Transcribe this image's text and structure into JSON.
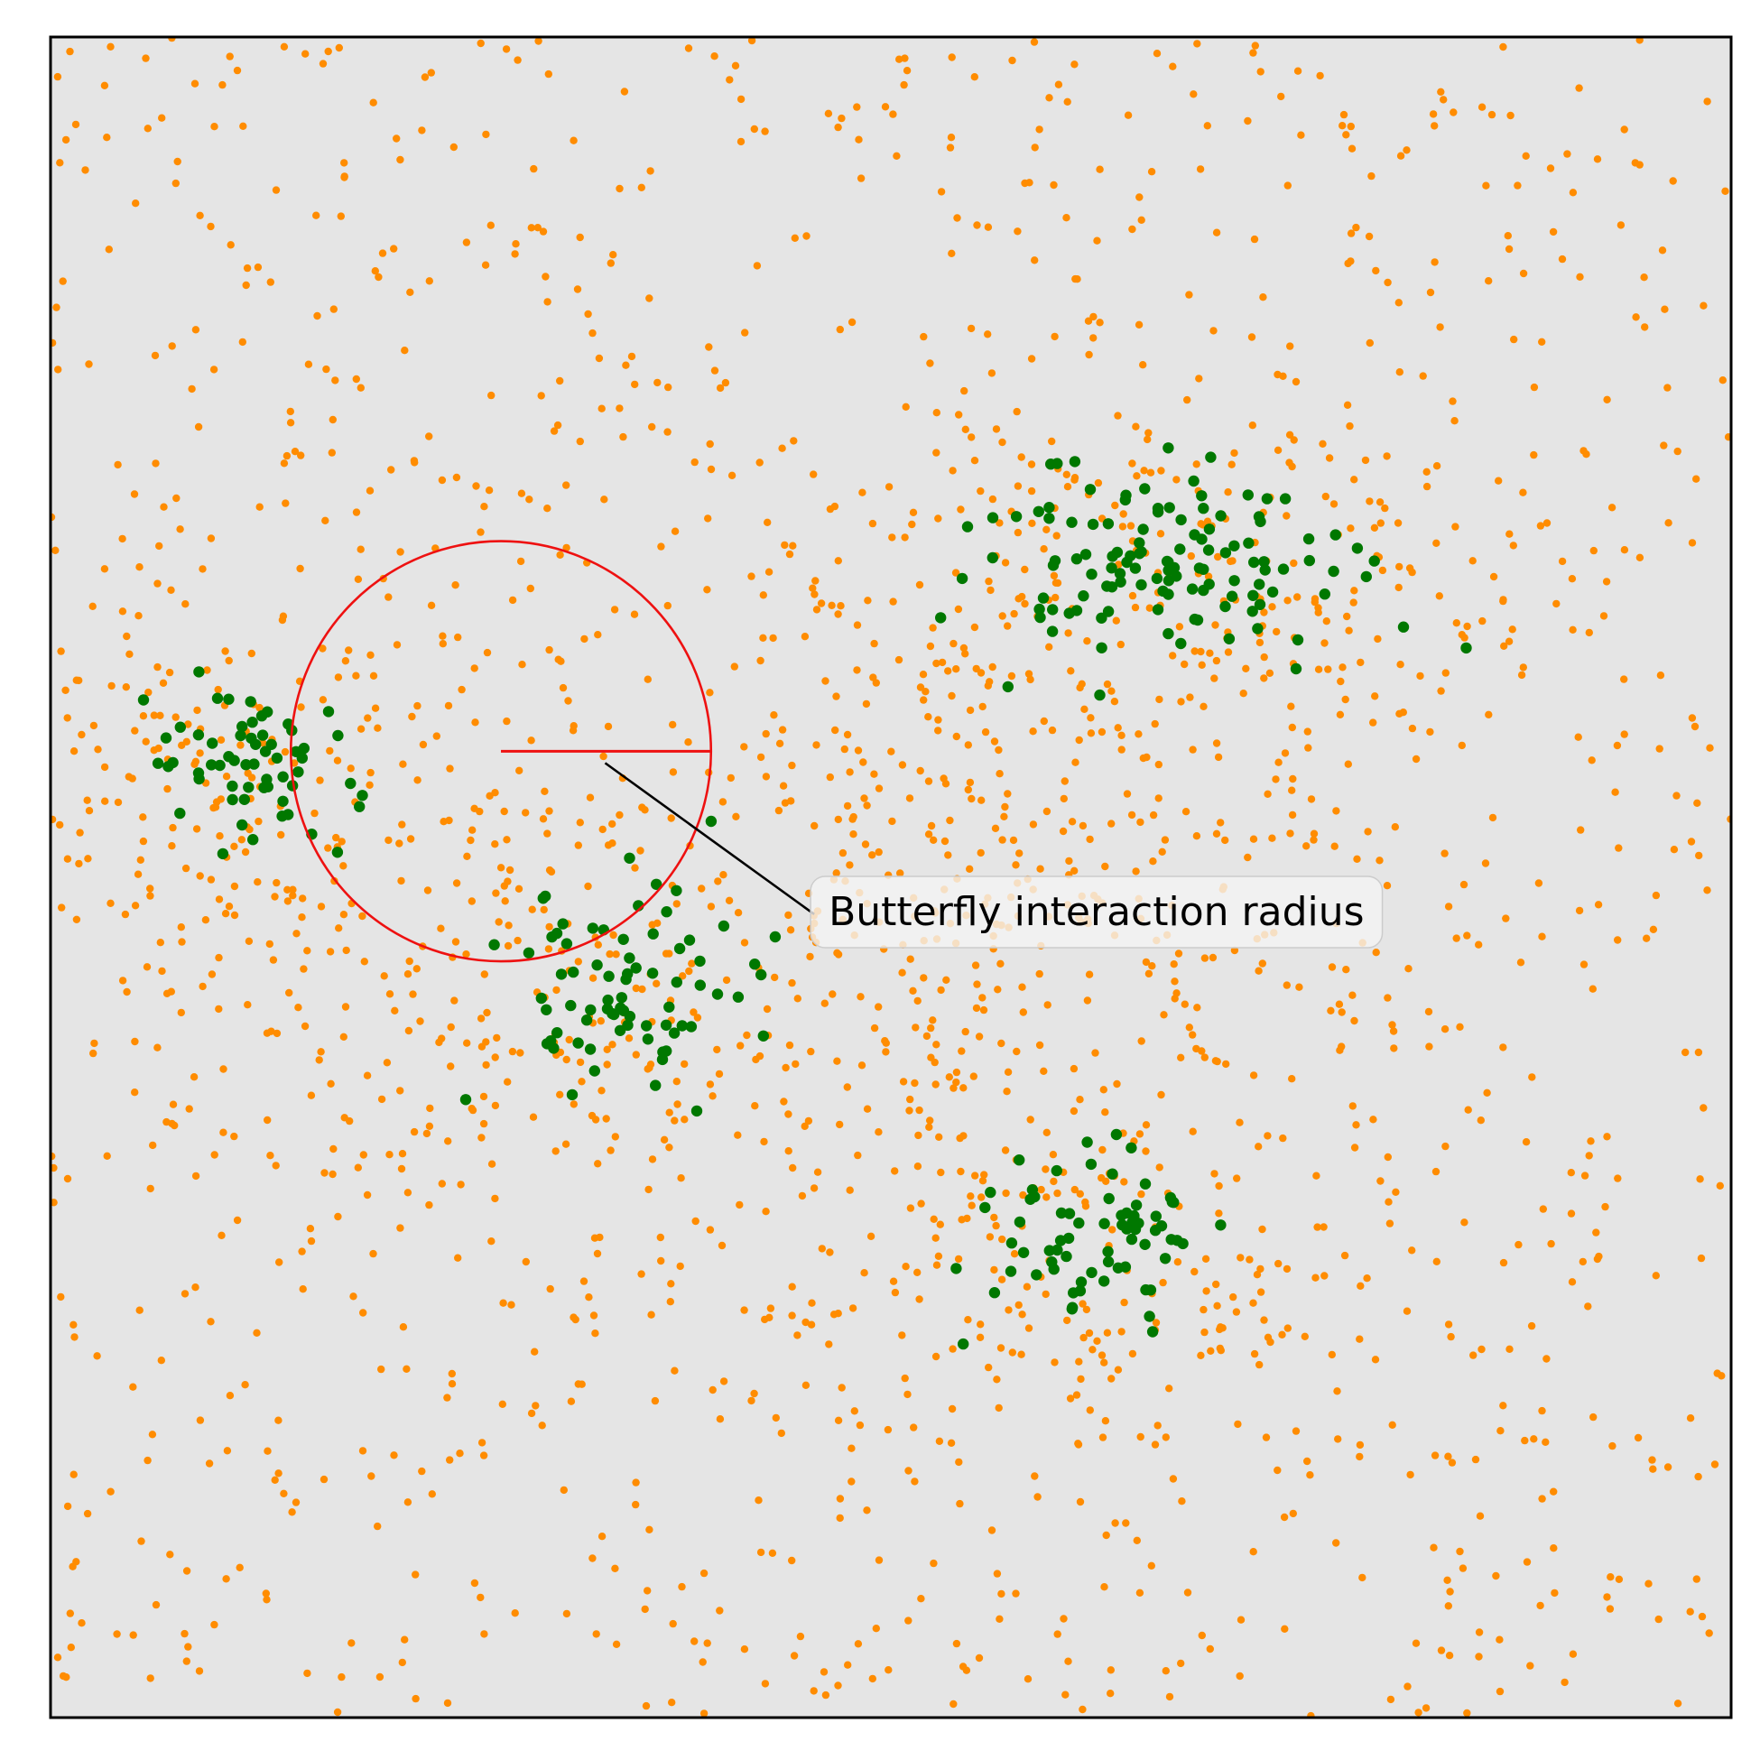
{
  "chart_data": {
    "type": "scatter",
    "title": "",
    "xlabel": "",
    "ylabel": "",
    "xlim": [
      0,
      1
    ],
    "ylim": [
      0,
      1
    ],
    "grid": false,
    "ticks_shown": false,
    "background_color": "#e5e5e5",
    "series": [
      {
        "role": "background-particles",
        "color": "#ff8c00",
        "generation": {
          "seed": 7,
          "uniform_count": 1300,
          "clusters": [
            {
              "cx": 0.1,
              "cy": 0.55,
              "sx": 0.09,
              "sy": 0.07,
              "n": 160
            },
            {
              "cx": 0.33,
              "cy": 0.42,
              "sx": 0.09,
              "sy": 0.08,
              "n": 160
            },
            {
              "cx": 0.67,
              "cy": 0.66,
              "sx": 0.12,
              "sy": 0.07,
              "n": 220
            },
            {
              "cx": 0.62,
              "cy": 0.28,
              "sx": 0.1,
              "sy": 0.07,
              "n": 170
            },
            {
              "cx": 0.55,
              "cy": 0.5,
              "sx": 0.1,
              "sy": 0.06,
              "n": 160
            }
          ]
        }
      },
      {
        "role": "butterfly-clusters",
        "color": "#007800",
        "generation": {
          "seed": 23,
          "clusters": [
            {
              "cx": 0.115,
              "cy": 0.565,
              "sx": 0.032,
              "sy": 0.028,
              "n": 60
            },
            {
              "cx": 0.345,
              "cy": 0.435,
              "sx": 0.038,
              "sy": 0.03,
              "n": 75
            },
            {
              "cx": 0.655,
              "cy": 0.685,
              "sx": 0.055,
              "sy": 0.03,
              "n": 120
            },
            {
              "cx": 0.625,
              "cy": 0.28,
              "sx": 0.03,
              "sy": 0.03,
              "n": 70
            }
          ]
        }
      }
    ],
    "interaction_circle": {
      "center": [
        0.268,
        0.575
      ],
      "radius": 0.125,
      "color": "#ee1111"
    },
    "annotation": {
      "text": "Butterfly interaction radius",
      "points_to": [
        0.33,
        0.568
      ],
      "text_anchor": [
        0.463,
        0.478
      ],
      "box_fill": "#f4f4f4"
    }
  }
}
